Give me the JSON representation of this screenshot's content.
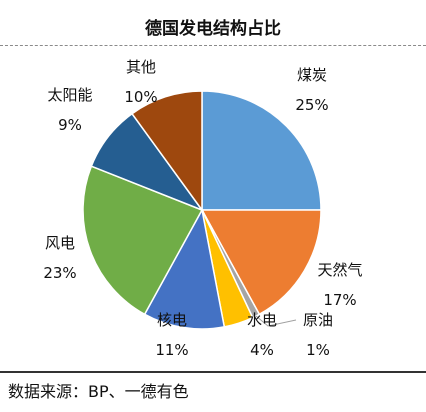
{
  "title": "德国发电结构占比",
  "source": "数据来源：BP、一德有色",
  "chart_data": {
    "type": "pie",
    "title": "德国发电结构占比",
    "series": [
      {
        "label": "煤炭",
        "value": 25,
        "pct": "25%",
        "color": "#5B9BD5"
      },
      {
        "label": "天然气",
        "value": 17,
        "pct": "17%",
        "color": "#ED7D31"
      },
      {
        "label": "原油",
        "value": 1,
        "pct": "1%",
        "color": "#A5A5A5"
      },
      {
        "label": "水电",
        "value": 4,
        "pct": "4%",
        "color": "#FFC000"
      },
      {
        "label": "核电",
        "value": 11,
        "pct": "11%",
        "color": "#4472C4"
      },
      {
        "label": "风电",
        "value": 23,
        "pct": "23%",
        "color": "#70AD47"
      },
      {
        "label": "太阳能",
        "value": 9,
        "pct": "9%",
        "color": "#255E91"
      },
      {
        "label": "其他",
        "value": 10,
        "pct": "10%",
        "color": "#9E480E"
      }
    ]
  }
}
